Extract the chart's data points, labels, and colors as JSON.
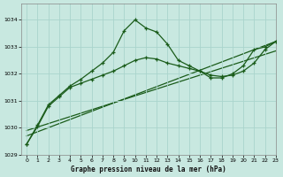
{
  "title": "Graphe pression niveau de la mer (hPa)",
  "bg_color": "#c8e8e0",
  "grid_color": "#aad4cc",
  "line_color": "#1a5c1a",
  "xlim": [
    -0.5,
    23
  ],
  "ylim": [
    1029,
    1034.6
  ],
  "yticks": [
    1029,
    1030,
    1031,
    1032,
    1033,
    1034
  ],
  "xticks": [
    0,
    1,
    2,
    3,
    4,
    5,
    6,
    7,
    8,
    9,
    10,
    11,
    12,
    13,
    14,
    15,
    16,
    17,
    18,
    19,
    20,
    21,
    22,
    23
  ],
  "series_spiky_x": [
    0,
    1,
    2,
    3,
    4,
    5,
    6,
    7,
    8,
    9,
    10,
    11,
    12,
    13,
    14,
    15,
    16,
    17,
    18,
    19,
    20,
    21,
    22,
    23
  ],
  "series_spiky_y": [
    1029.4,
    1030.1,
    1030.85,
    1031.2,
    1031.55,
    1031.8,
    1032.1,
    1032.4,
    1032.8,
    1033.6,
    1034.0,
    1033.7,
    1033.55,
    1033.1,
    1032.5,
    1032.3,
    1032.1,
    1031.85,
    1031.85,
    1032.0,
    1032.3,
    1032.9,
    1033.0,
    1033.2
  ],
  "series_smooth_x": [
    0,
    1,
    2,
    3,
    4,
    5,
    6,
    7,
    8,
    9,
    10,
    11,
    12,
    13,
    14,
    15,
    16,
    17,
    18,
    19,
    20,
    21,
    22,
    23
  ],
  "series_smooth_y": [
    1029.4,
    1030.05,
    1030.8,
    1031.15,
    1031.5,
    1031.65,
    1031.8,
    1031.95,
    1032.1,
    1032.3,
    1032.5,
    1032.6,
    1032.55,
    1032.4,
    1032.3,
    1032.2,
    1032.1,
    1031.95,
    1031.9,
    1031.95,
    1032.1,
    1032.4,
    1032.9,
    1033.2
  ],
  "ref_line1_x": [
    0,
    23
  ],
  "ref_line1_y": [
    1029.7,
    1033.2
  ],
  "ref_line2_x": [
    0,
    23
  ],
  "ref_line2_y": [
    1029.9,
    1032.85
  ]
}
